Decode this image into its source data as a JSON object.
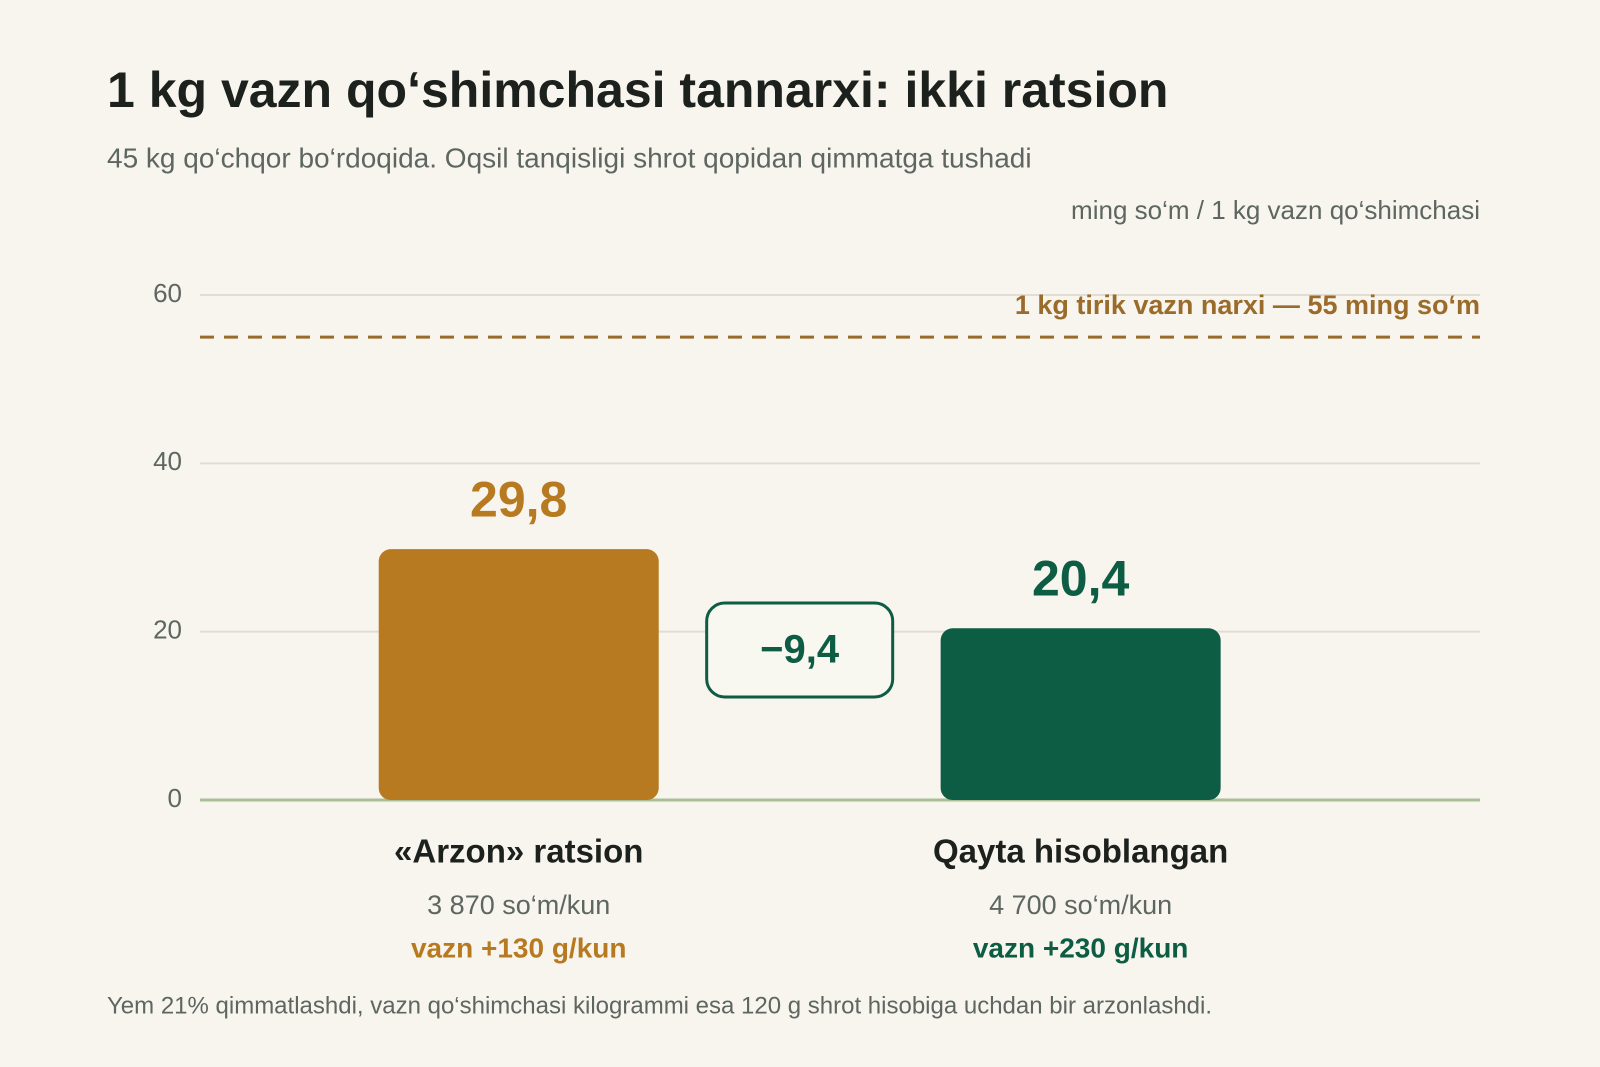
{
  "chart_data": {
    "type": "bar",
    "title": "1 kg vazn qo‘shimchasi tannarxi: ikki ratsion",
    "subtitle": "45 kg qo‘chqor bo‘rdoqida. Oqsil tanqisligi shrot qopidan qimmatga tushadi",
    "y_label": "ming so‘m / 1 kg vazn qo‘shimchasi",
    "categories": [
      "«Arzon» ratsion",
      "Qayta hisoblangan"
    ],
    "category_costs": [
      "3 870 so‘m/kun",
      "4 700 so‘m/kun"
    ],
    "category_gains": [
      "vazn +130 g/kun",
      "vazn +230 g/kun"
    ],
    "values": [
      29.8,
      20.4
    ],
    "value_labels": [
      "29,8",
      "20,4"
    ],
    "colors": [
      "#b77a20",
      "#0d5c44"
    ],
    "ylim": [
      0,
      60
    ],
    "yticks": [
      0,
      20,
      40,
      60
    ],
    "grid": true,
    "reference_line": {
      "value": 55,
      "label": "1 kg tirik vazn narxi — 55 ming so‘m",
      "color": "#9a6b2a"
    },
    "difference": {
      "value": -9.4,
      "label": "−9,4"
    },
    "footnote": "Yem 21% qimmatlashdi, vazn qo‘shimchasi kilogrammi esa 120 g shrot hisobiga uchdan bir arzonlashdi."
  }
}
